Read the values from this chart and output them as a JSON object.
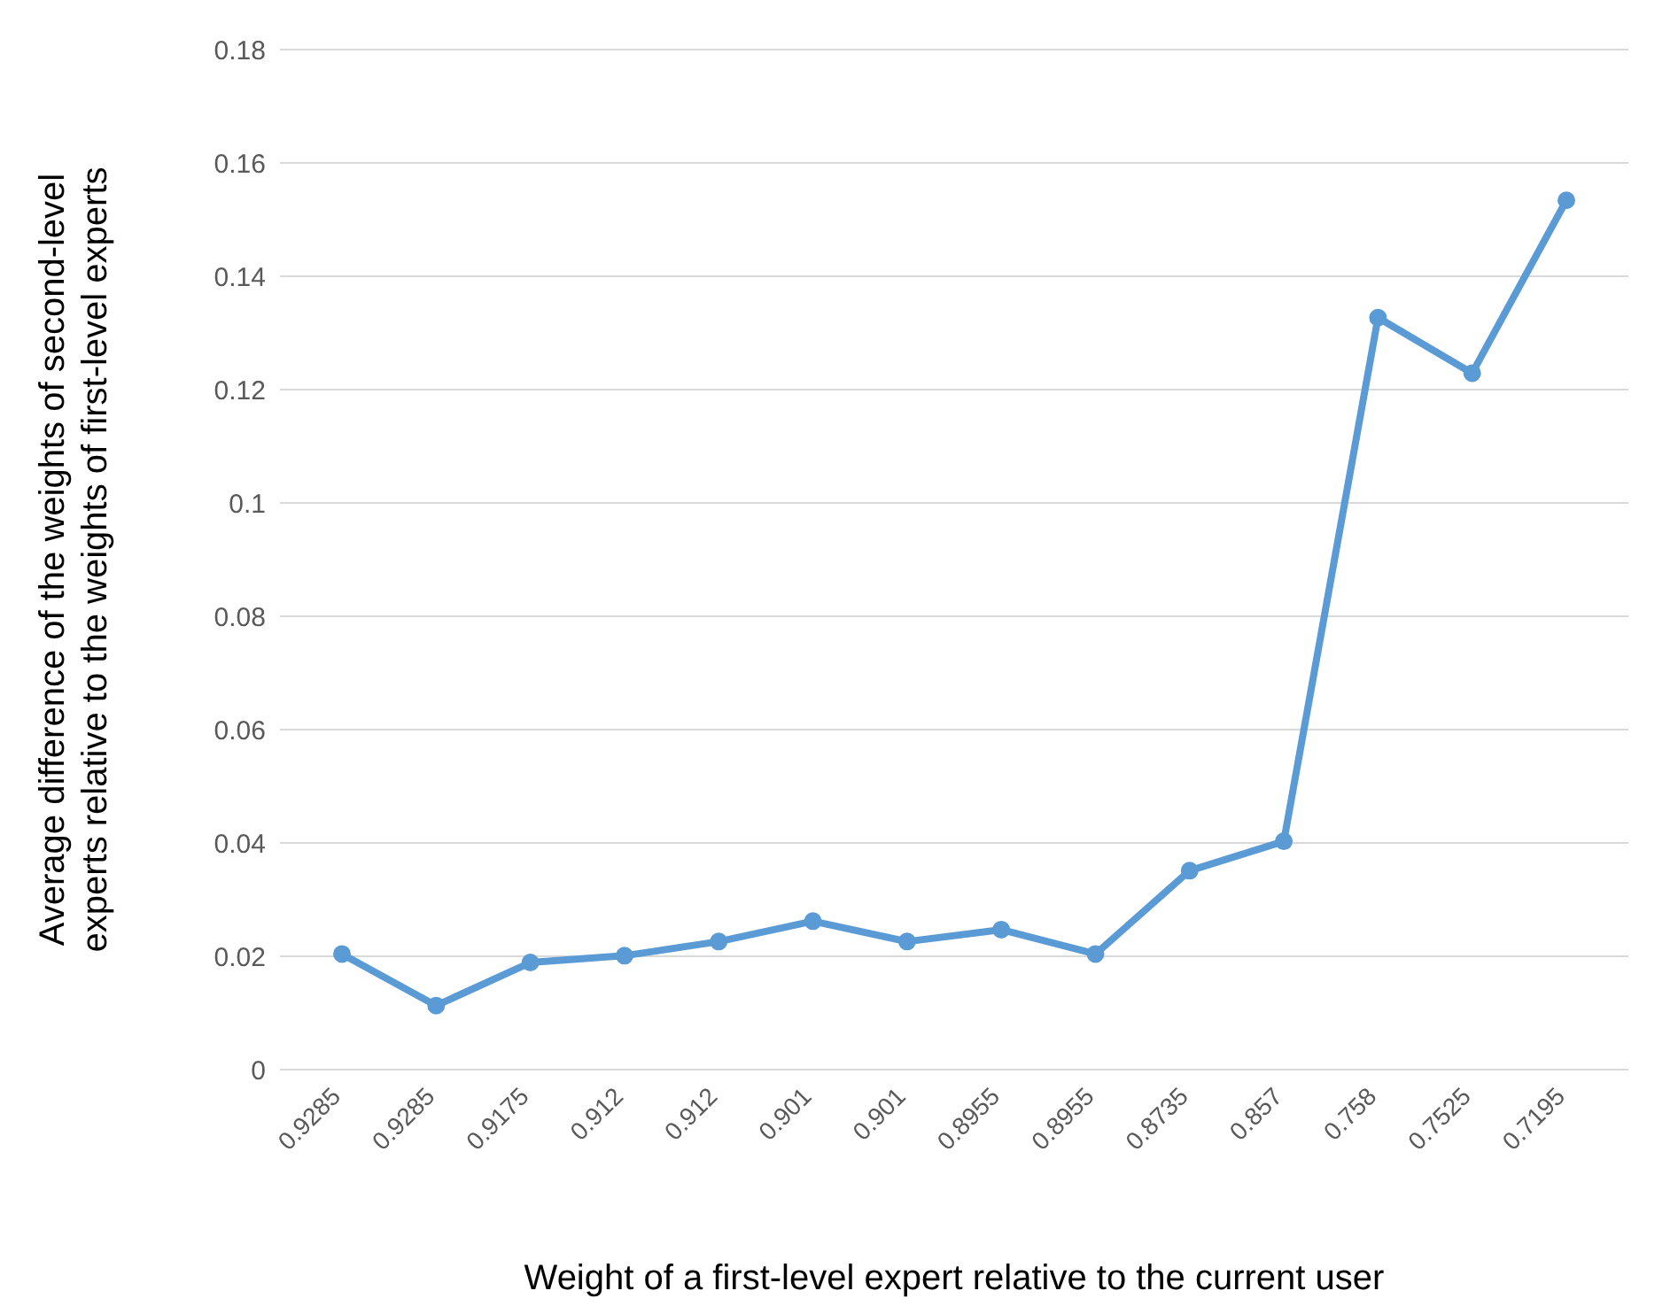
{
  "chart_data": {
    "type": "line",
    "xlabel": "Weight of a first-level expert relative to the current user",
    "ylabel": "Average difference of the weights of second-level experts relative to the weights of first-level experts",
    "categories": [
      "0.9285",
      "0.9285",
      "0.9175",
      "0.912",
      "0.912",
      "0.901",
      "0.901",
      "0.8955",
      "0.8955",
      "0.8735",
      "0.857",
      "0.758",
      "0.7525",
      "0.7195"
    ],
    "series": [
      {
        "color": "#5b9bd5",
        "values": [
          0.0204,
          0.0113,
          0.0189,
          0.0201,
          0.0226,
          0.0262,
          0.0226,
          0.0247,
          0.0204,
          0.0351,
          0.0403,
          0.1327,
          0.1229,
          0.1534
        ]
      }
    ],
    "ylim": [
      0,
      0.18
    ],
    "yticks": [
      0,
      0.02,
      0.04,
      0.06,
      0.08,
      0.1,
      0.12,
      0.14,
      0.16,
      0.18
    ],
    "grid": "y",
    "marker": "circle",
    "line_style": "solid",
    "legend": false
  }
}
